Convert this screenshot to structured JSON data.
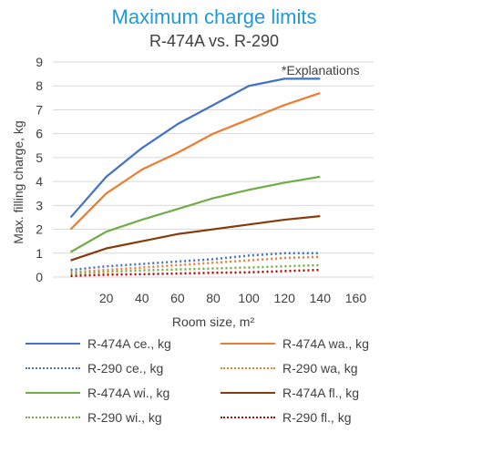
{
  "chart_data": {
    "type": "line",
    "title": "Maximum charge limits",
    "subtitle": "R-474A vs. R-290",
    "annotation": "*Explanations",
    "xlabel": "Room size, m²",
    "ylabel": "Max. filling charge, kg",
    "x": [
      0,
      20,
      40,
      60,
      80,
      100,
      120,
      140
    ],
    "x_ticks": [
      "20",
      "40",
      "60",
      "80",
      "100",
      "120",
      "140",
      "160"
    ],
    "y_ticks": [
      "0",
      "1",
      "2",
      "3",
      "4",
      "5",
      "6",
      "7",
      "8",
      "9"
    ],
    "xlim": [
      -10,
      170
    ],
    "ylim": [
      0,
      9
    ],
    "grid": true,
    "legend_position": "bottom",
    "series": [
      {
        "name": "R-474A ce., kg",
        "color": "#4472c4",
        "style": "solid",
        "values": [
          2.5,
          4.2,
          5.4,
          6.4,
          7.2,
          8.0,
          8.3,
          8.3
        ]
      },
      {
        "name": "R-474A wa., kg",
        "color": "#ed7d31",
        "style": "solid",
        "values": [
          2.0,
          3.5,
          4.5,
          5.2,
          6.0,
          6.6,
          7.2,
          7.7
        ]
      },
      {
        "name": "R-290 ce., kg",
        "color": "#4472c4",
        "style": "dotted",
        "values": [
          0.3,
          0.45,
          0.55,
          0.65,
          0.75,
          0.9,
          1.0,
          1.0
        ]
      },
      {
        "name": "R-290 wa, kg",
        "color": "#ed7d31",
        "style": "dotted",
        "values": [
          0.2,
          0.3,
          0.4,
          0.5,
          0.6,
          0.7,
          0.8,
          0.85
        ]
      },
      {
        "name": "R-474A wi., kg",
        "color": "#70ad47",
        "style": "solid",
        "values": [
          1.05,
          1.9,
          2.4,
          2.85,
          3.3,
          3.65,
          3.95,
          4.2
        ]
      },
      {
        "name": "R-474A fl., kg",
        "color": "#843c0c",
        "style": "solid",
        "values": [
          0.7,
          1.2,
          1.5,
          1.8,
          2.0,
          2.2,
          2.4,
          2.55
        ]
      },
      {
        "name": "R-290 wi., kg",
        "color": "#70ad47",
        "style": "dotted",
        "values": [
          0.15,
          0.22,
          0.28,
          0.32,
          0.36,
          0.4,
          0.45,
          0.5
        ]
      },
      {
        "name": "R-290 fl., kg",
        "color": "#c00000",
        "style": "dotted",
        "values": [
          0.05,
          0.1,
          0.12,
          0.15,
          0.18,
          0.2,
          0.25,
          0.3
        ]
      }
    ]
  }
}
